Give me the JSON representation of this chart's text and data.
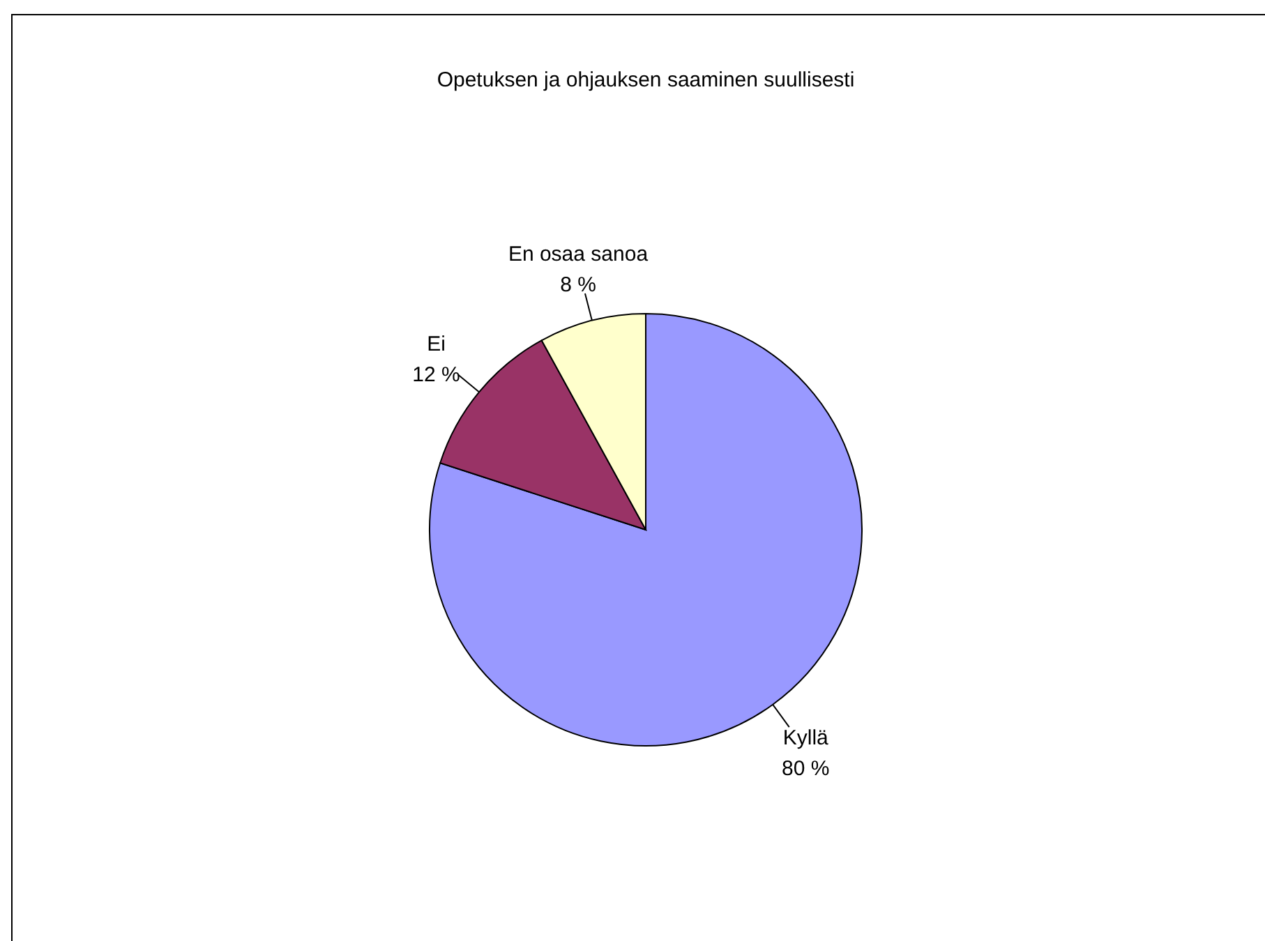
{
  "chart_data": {
    "type": "pie",
    "title": "Opetuksen ja ohjauksen saaminen suullisesti",
    "categories": [
      "Kyllä",
      "Ei",
      "En osaa sanoa"
    ],
    "values": [
      80,
      12,
      8
    ],
    "value_labels": [
      "80 %",
      "12 %",
      "8 %"
    ],
    "colors": [
      "#9999ff",
      "#993366",
      "#ffffcc"
    ]
  }
}
